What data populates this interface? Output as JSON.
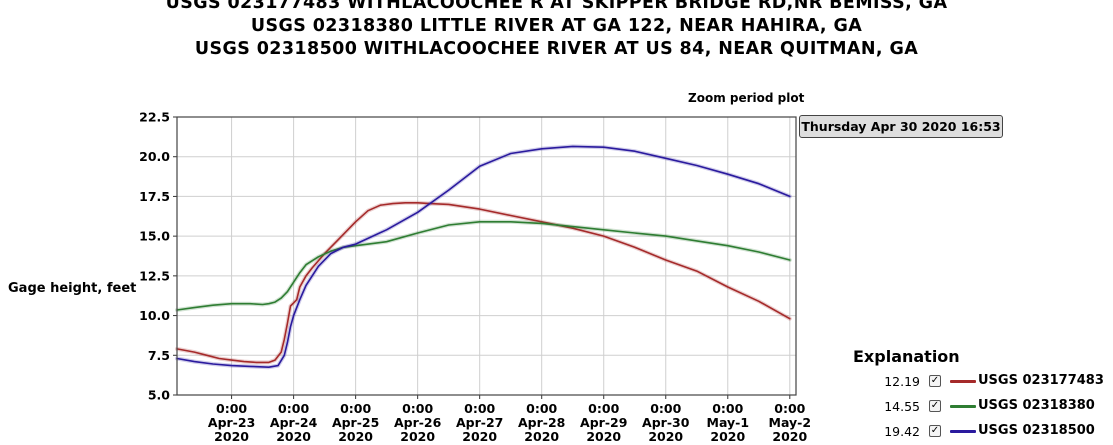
{
  "titles": [
    "USGS 023177483 WITHLACOOCHEE R AT SKIPPER BRIDGE RD,NR BEMISS, GA",
    "USGS 02318380 LITTLE RIVER AT GA 122, NEAR HAHIRA, GA",
    "USGS 02318500 WITHLACOOCHEE RIVER AT US 84, NEAR QUITMAN, GA"
  ],
  "zoom_label": "Zoom period plot",
  "tooltip": "Thursday Apr 30 2020 16:53",
  "legend": {
    "title": "Explanation",
    "items": [
      {
        "value": "12.19",
        "checked": "✓",
        "name": "USGS 023177483",
        "color": "#a52a2a"
      },
      {
        "value": "14.55",
        "checked": "✓",
        "name": "USGS 02318380",
        "color": "#2e7d32"
      },
      {
        "value": "19.42",
        "checked": "✓",
        "name": "USGS 02318500",
        "color": "#2a1a9e"
      }
    ]
  },
  "chart_data": {
    "type": "line",
    "ylabel": "Gage height, feet",
    "ylim": [
      5.0,
      22.5
    ],
    "yticks": [
      "5.0",
      "7.5",
      "10.0",
      "12.5",
      "15.0",
      "17.5",
      "20.0",
      "22.5"
    ],
    "xlim": [
      -0.88,
      9.1
    ],
    "xticks": [
      {
        "x": 0,
        "time": "0:00",
        "date": "Apr-23",
        "year": "2020"
      },
      {
        "x": 1,
        "time": "0:00",
        "date": "Apr-24",
        "year": "2020"
      },
      {
        "x": 2,
        "time": "0:00",
        "date": "Apr-25",
        "year": "2020"
      },
      {
        "x": 3,
        "time": "0:00",
        "date": "Apr-26",
        "year": "2020"
      },
      {
        "x": 4,
        "time": "0:00",
        "date": "Apr-27",
        "year": "2020"
      },
      {
        "x": 5,
        "time": "0:00",
        "date": "Apr-28",
        "year": "2020"
      },
      {
        "x": 6,
        "time": "0:00",
        "date": "Apr-29",
        "year": "2020"
      },
      {
        "x": 7,
        "time": "0:00",
        "date": "Apr-30",
        "year": "2020"
      },
      {
        "x": 8,
        "time": "0:00",
        "date": "May-1",
        "year": "2020"
      },
      {
        "x": 9,
        "time": "0:00",
        "date": "May-2",
        "year": "2020"
      }
    ],
    "series": [
      {
        "name": "USGS 023177483",
        "color": "#a52a2a",
        "x": [
          -0.88,
          -0.6,
          -0.4,
          -0.2,
          0,
          0.2,
          0.4,
          0.5,
          0.6,
          0.7,
          0.8,
          0.85,
          0.9,
          0.95,
          1.0,
          1.05,
          1.1,
          1.2,
          1.3,
          1.5,
          1.7,
          2.0,
          2.2,
          2.4,
          2.6,
          2.8,
          3.0,
          3.2,
          3.5,
          4.0,
          4.5,
          5.0,
          5.5,
          6.0,
          6.5,
          7.0,
          7.5,
          8.0,
          8.5,
          9.0
        ],
        "y": [
          7.9,
          7.7,
          7.5,
          7.3,
          7.2,
          7.1,
          7.05,
          7.05,
          7.05,
          7.2,
          7.7,
          8.5,
          9.5,
          10.6,
          10.8,
          11.0,
          11.8,
          12.5,
          13.0,
          13.9,
          14.7,
          15.9,
          16.6,
          16.95,
          17.05,
          17.1,
          17.1,
          17.05,
          17.0,
          16.7,
          16.3,
          15.9,
          15.5,
          15.0,
          14.3,
          13.5,
          12.8,
          11.8,
          10.9,
          9.8
        ]
      },
      {
        "name": "USGS 02318380",
        "color": "#2e7d32",
        "x": [
          -0.88,
          -0.6,
          -0.3,
          0,
          0.3,
          0.5,
          0.6,
          0.7,
          0.8,
          0.9,
          1.0,
          1.1,
          1.2,
          1.4,
          1.6,
          1.8,
          2.0,
          2.5,
          3.0,
          3.5,
          4.0,
          4.5,
          5.0,
          5.5,
          6.0,
          6.5,
          7.0,
          7.5,
          8.0,
          8.5,
          9.0
        ],
        "y": [
          10.35,
          10.5,
          10.65,
          10.75,
          10.75,
          10.7,
          10.75,
          10.85,
          11.1,
          11.5,
          12.1,
          12.7,
          13.2,
          13.7,
          14.05,
          14.3,
          14.4,
          14.65,
          15.2,
          15.7,
          15.9,
          15.9,
          15.8,
          15.6,
          15.4,
          15.2,
          15.0,
          14.7,
          14.4,
          14.0,
          13.5
        ]
      },
      {
        "name": "USGS 02318500",
        "color": "#2a1a9e",
        "x": [
          -0.88,
          -0.6,
          -0.3,
          0,
          0.3,
          0.6,
          0.75,
          0.85,
          0.9,
          0.95,
          1.0,
          1.1,
          1.2,
          1.4,
          1.6,
          1.8,
          2.0,
          2.5,
          3.0,
          3.5,
          4.0,
          4.5,
          5.0,
          5.5,
          6.0,
          6.5,
          7.0,
          7.5,
          8.0,
          8.5,
          9.0
        ],
        "y": [
          7.3,
          7.1,
          6.95,
          6.85,
          6.8,
          6.75,
          6.85,
          7.5,
          8.3,
          9.3,
          10.0,
          11.0,
          11.9,
          13.1,
          13.9,
          14.3,
          14.5,
          15.4,
          16.5,
          17.9,
          19.4,
          20.2,
          20.5,
          20.65,
          20.6,
          20.35,
          19.9,
          19.45,
          18.9,
          18.3,
          17.5
        ]
      }
    ]
  }
}
